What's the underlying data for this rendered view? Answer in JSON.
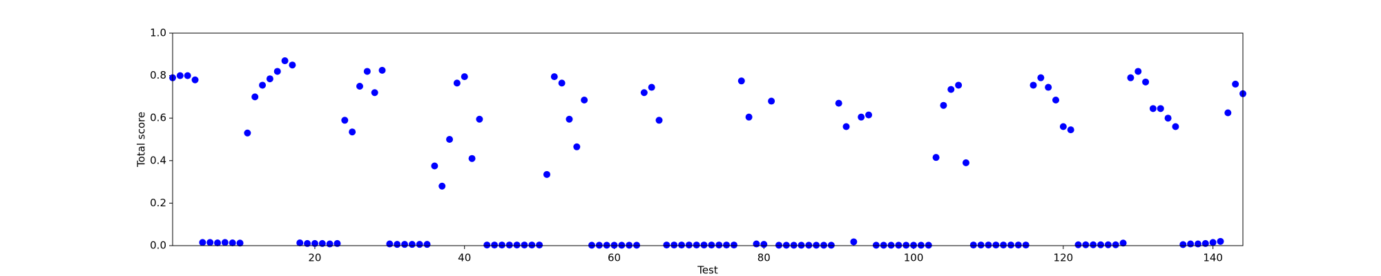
{
  "chart_data": {
    "type": "scatter",
    "xlabel": "Test",
    "ylabel": "Total score",
    "color": "#0000ff",
    "xlim": [
      1,
      144
    ],
    "ylim": [
      0,
      1
    ],
    "xticks": [
      20,
      40,
      60,
      80,
      100,
      120,
      140
    ],
    "yticks": [
      {
        "value": 0,
        "label": "0.0"
      },
      0.2,
      0.4,
      0.6,
      0.8,
      {
        "value": 1,
        "label": "1.0"
      }
    ],
    "x": [
      1,
      2,
      3,
      4,
      5,
      6,
      7,
      8,
      9,
      10,
      11,
      12,
      13,
      14,
      15,
      16,
      17,
      18,
      19,
      20,
      21,
      22,
      23,
      24,
      25,
      26,
      27,
      28,
      29,
      30,
      31,
      32,
      33,
      34,
      35,
      36,
      37,
      38,
      39,
      40,
      41,
      42,
      43,
      44,
      45,
      46,
      47,
      48,
      49,
      50,
      51,
      52,
      53,
      54,
      55,
      56,
      57,
      58,
      59,
      60,
      61,
      62,
      63,
      64,
      65,
      66,
      67,
      68,
      69,
      70,
      71,
      72,
      73,
      74,
      75,
      76,
      77,
      78,
      79,
      80,
      81,
      82,
      83,
      84,
      85,
      86,
      87,
      88,
      89,
      90,
      91,
      92,
      93,
      94,
      95,
      96,
      97,
      98,
      99,
      100,
      101,
      102,
      103,
      104,
      105,
      106,
      107,
      108,
      109,
      110,
      111,
      112,
      113,
      114,
      115,
      116,
      117,
      118,
      119,
      120,
      121,
      122,
      123,
      124,
      125,
      126,
      127,
      128,
      129,
      130,
      131,
      132,
      133,
      134,
      135,
      136,
      137,
      138,
      139,
      140,
      141,
      142,
      143,
      144
    ],
    "values": [
      0.79,
      0.8,
      0.8,
      0.78,
      0.015,
      0.015,
      0.013,
      0.015,
      0.013,
      0.012,
      0.53,
      0.7,
      0.755,
      0.785,
      0.82,
      0.87,
      0.85,
      0.013,
      0.01,
      0.01,
      0.01,
      0.008,
      0.01,
      0.59,
      0.535,
      0.75,
      0.82,
      0.72,
      0.825,
      0.008,
      0.006,
      0.006,
      0.006,
      0.006,
      0.006,
      0.375,
      0.28,
      0.5,
      0.765,
      0.795,
      0.41,
      0.595,
      0.003,
      0.003,
      0.003,
      0.003,
      0.003,
      0.003,
      0.003,
      0.003,
      0.335,
      0.795,
      0.765,
      0.595,
      0.465,
      0.685,
      0.002,
      0.002,
      0.002,
      0.002,
      0.002,
      0.002,
      0.002,
      0.72,
      0.745,
      0.59,
      0.003,
      0.003,
      0.003,
      0.003,
      0.003,
      0.003,
      0.003,
      0.003,
      0.003,
      0.003,
      0.775,
      0.605,
      0.008,
      0.006,
      0.68,
      0.002,
      0.002,
      0.002,
      0.002,
      0.002,
      0.002,
      0.002,
      0.002,
      0.67,
      0.56,
      0.018,
      0.605,
      0.615,
      0.002,
      0.002,
      0.002,
      0.002,
      0.002,
      0.002,
      0.002,
      0.002,
      0.415,
      0.66,
      0.735,
      0.755,
      0.39,
      0.003,
      0.003,
      0.003,
      0.003,
      0.003,
      0.003,
      0.003,
      0.003,
      0.755,
      0.79,
      0.745,
      0.685,
      0.56,
      0.545,
      0.004,
      0.004,
      0.004,
      0.004,
      0.004,
      0.004,
      0.012,
      0.79,
      0.82,
      0.77,
      0.645,
      0.645,
      0.6,
      0.56,
      0.005,
      0.008,
      0.008,
      0.01,
      0.015,
      0.02,
      0.625,
      0.76,
      0.715
    ]
  }
}
